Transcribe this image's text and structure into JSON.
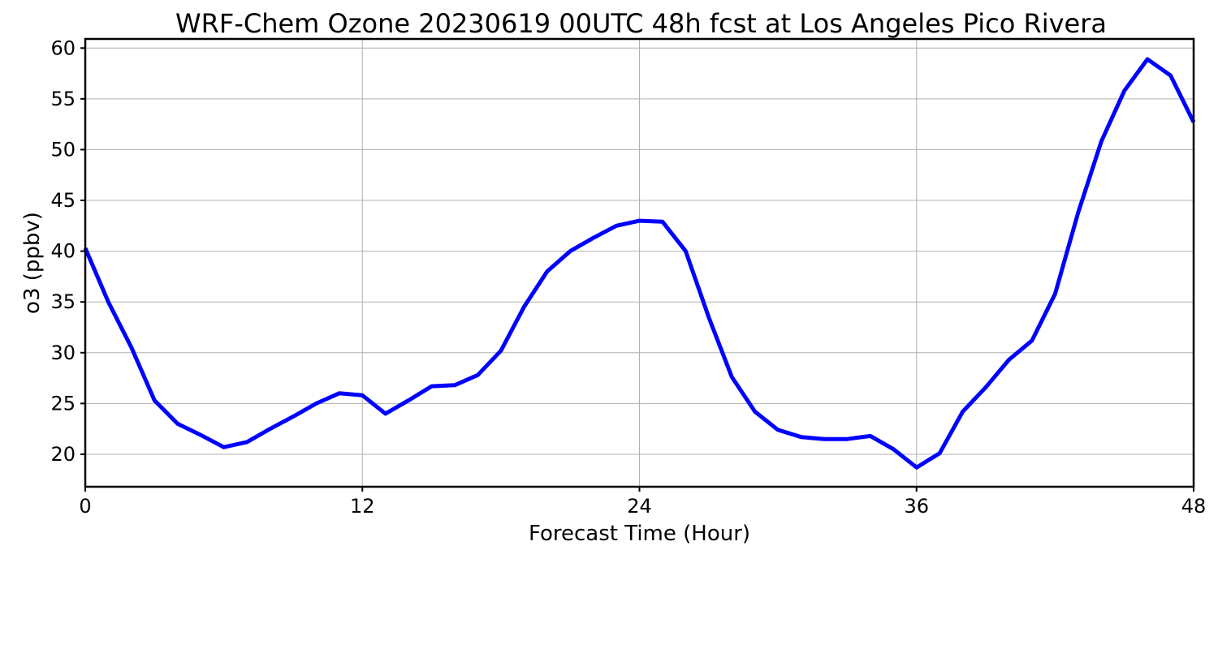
{
  "chart_data": {
    "type": "line",
    "title": "WRF-Chem Ozone  20230619 00UTC 48h fcst at Los Angeles Pico Rivera",
    "xlabel": "Forecast Time (Hour)",
    "ylabel": "o3  (ppbv)",
    "xlim": [
      0,
      48
    ],
    "ylim": [
      16.8,
      60.9
    ],
    "xticks": [
      0,
      12,
      24,
      36,
      48
    ],
    "yticks": [
      20,
      25,
      30,
      35,
      40,
      45,
      50,
      55,
      60
    ],
    "grid": true,
    "series": [
      {
        "color": "#0000ff",
        "x": [
          0,
          1,
          2,
          3,
          4,
          5,
          6,
          7,
          8,
          9,
          10,
          11,
          12,
          13,
          14,
          15,
          16,
          17,
          18,
          19,
          20,
          21,
          22,
          23,
          24,
          25,
          26,
          27,
          28,
          29,
          30,
          31,
          32,
          33,
          34,
          35,
          36,
          37,
          38,
          39,
          40,
          41,
          42,
          43,
          44,
          45,
          46,
          47,
          48
        ],
        "y": [
          40.3,
          35.0,
          30.5,
          25.3,
          23.0,
          21.9,
          20.7,
          21.2,
          22.5,
          23.7,
          25.0,
          26.0,
          25.8,
          24.0,
          25.3,
          26.7,
          26.8,
          27.8,
          30.2,
          34.5,
          38.0,
          40.0,
          41.3,
          42.5,
          43.0,
          42.9,
          40.0,
          33.5,
          27.6,
          24.2,
          22.4,
          21.7,
          21.5,
          21.5,
          21.8,
          20.5,
          18.7,
          20.1,
          24.2,
          26.6,
          29.3,
          31.2,
          35.8,
          43.8,
          50.8,
          55.8,
          58.9,
          57.3,
          52.7
        ]
      }
    ]
  }
}
